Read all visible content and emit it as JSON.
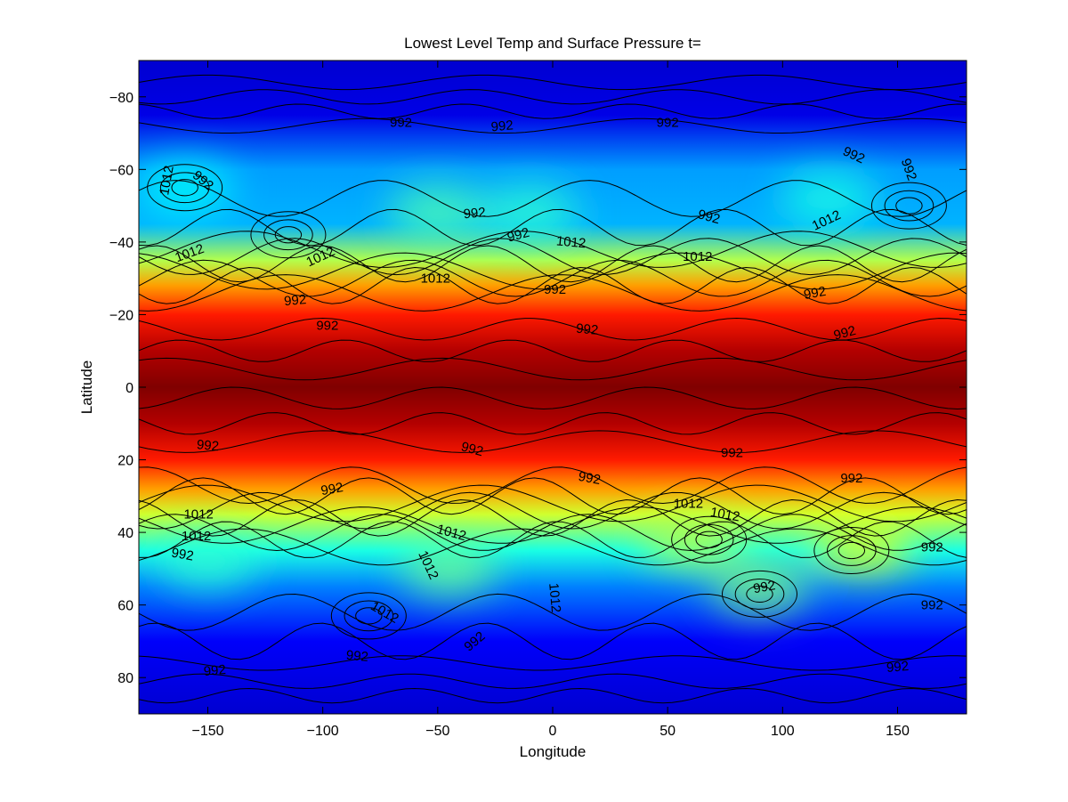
{
  "chart_data": {
    "type": "heatmap",
    "title": "Lowest Level Temp and Surface Pressure t=",
    "xlabel": "Longitude",
    "ylabel": "Latitude",
    "xlim": [
      -180,
      180
    ],
    "ylim": [
      -90,
      90
    ],
    "y_axis_reversed": true,
    "x_ticks": [
      -150,
      -100,
      -50,
      0,
      50,
      100,
      150
    ],
    "x_tick_labels": [
      "−150",
      "−100",
      "−50",
      "0",
      "50",
      "100",
      "150"
    ],
    "y_ticks": [
      -80,
      -60,
      -40,
      -20,
      0,
      20,
      40,
      60,
      80
    ],
    "y_tick_labels": [
      "−80",
      "−60",
      "−40",
      "−20",
      "0",
      "20",
      "40",
      "60",
      "80"
    ],
    "colormap": "jet",
    "colorbar": false,
    "grid": false,
    "temperature_profile": {
      "description_levels_by_latitude": [
        {
          "lat": -90,
          "level": 0.08
        },
        {
          "lat": -75,
          "level": 0.1
        },
        {
          "lat": -60,
          "level": 0.28
        },
        {
          "lat": -45,
          "level": 0.3
        },
        {
          "lat": -35,
          "level": 0.55
        },
        {
          "lat": -28,
          "level": 0.72
        },
        {
          "lat": -20,
          "level": 0.85
        },
        {
          "lat": -10,
          "level": 0.95
        },
        {
          "lat": 0,
          "level": 1.0
        },
        {
          "lat": 10,
          "level": 0.95
        },
        {
          "lat": 20,
          "level": 0.85
        },
        {
          "lat": 28,
          "level": 0.72
        },
        {
          "lat": 35,
          "level": 0.58
        },
        {
          "lat": 45,
          "level": 0.4
        },
        {
          "lat": 55,
          "level": 0.25
        },
        {
          "lat": 70,
          "level": 0.12
        },
        {
          "lat": 90,
          "level": 0.08
        }
      ]
    },
    "warm_blobs": [
      {
        "lon": -50,
        "lat": -48,
        "level": 0.45
      },
      {
        "lon": -10,
        "lat": -48,
        "level": 0.42
      },
      {
        "lon": 120,
        "lat": -52,
        "level": 0.4
      },
      {
        "lon": -160,
        "lat": -55,
        "level": 0.38
      },
      {
        "lon": 135,
        "lat": 44,
        "level": 0.6
      },
      {
        "lon": 60,
        "lat": 42,
        "level": 0.55
      },
      {
        "lon": -45,
        "lat": 50,
        "level": 0.48
      },
      {
        "lon": -150,
        "lat": 48,
        "level": 0.42
      },
      {
        "lon": 90,
        "lat": 55,
        "level": 0.5
      }
    ],
    "contour_labels": [
      {
        "text": "992",
        "lon": -66,
        "lat": -73,
        "angle": 0
      },
      {
        "text": "992",
        "lon": -22,
        "lat": -72,
        "angle": -5
      },
      {
        "text": "992",
        "lon": 50,
        "lat": -73,
        "angle": 0
      },
      {
        "text": "992",
        "lon": 131,
        "lat": -64,
        "angle": 25
      },
      {
        "text": "992",
        "lon": 155,
        "lat": -60,
        "angle": 70
      },
      {
        "text": "1012",
        "lon": -168,
        "lat": -57,
        "angle": -80
      },
      {
        "text": "992",
        "lon": -152,
        "lat": -57,
        "angle": 40
      },
      {
        "text": "992",
        "lon": -34,
        "lat": -48,
        "angle": -5
      },
      {
        "text": "992",
        "lon": 68,
        "lat": -47,
        "angle": 15
      },
      {
        "text": "1012",
        "lon": 119,
        "lat": -46,
        "angle": -25
      },
      {
        "text": "992",
        "lon": -15,
        "lat": -42,
        "angle": -15
      },
      {
        "text": "1012",
        "lon": 8,
        "lat": -40,
        "angle": 5
      },
      {
        "text": "1012",
        "lon": -158,
        "lat": -37,
        "angle": -20
      },
      {
        "text": "1012",
        "lon": -101,
        "lat": -36,
        "angle": -25
      },
      {
        "text": "1012",
        "lon": 63,
        "lat": -36,
        "angle": 0
      },
      {
        "text": "1012",
        "lon": -51,
        "lat": -30,
        "angle": 0
      },
      {
        "text": "992",
        "lon": 1,
        "lat": -27,
        "angle": 0
      },
      {
        "text": "992",
        "lon": 114,
        "lat": -26,
        "angle": -10
      },
      {
        "text": "992",
        "lon": -112,
        "lat": -24,
        "angle": -5
      },
      {
        "text": "992",
        "lon": -98,
        "lat": -17,
        "angle": 0
      },
      {
        "text": "992",
        "lon": 15,
        "lat": -16,
        "angle": 5
      },
      {
        "text": "992",
        "lon": 127,
        "lat": -15,
        "angle": -15
      },
      {
        "text": "992",
        "lon": -150,
        "lat": 16,
        "angle": 5
      },
      {
        "text": "992",
        "lon": -35,
        "lat": 17,
        "angle": 15
      },
      {
        "text": "992",
        "lon": 78,
        "lat": 18,
        "angle": 0
      },
      {
        "text": "992",
        "lon": -96,
        "lat": 28,
        "angle": -10
      },
      {
        "text": "992",
        "lon": 16,
        "lat": 25,
        "angle": 10
      },
      {
        "text": "992",
        "lon": 130,
        "lat": 25,
        "angle": 0
      },
      {
        "text": "1012",
        "lon": 59,
        "lat": 32,
        "angle": 0
      },
      {
        "text": "1012",
        "lon": -154,
        "lat": 35,
        "angle": 0
      },
      {
        "text": "1012",
        "lon": 75,
        "lat": 35,
        "angle": 10
      },
      {
        "text": "1012",
        "lon": -44,
        "lat": 40,
        "angle": 15
      },
      {
        "text": "1012",
        "lon": -155,
        "lat": 41,
        "angle": 0
      },
      {
        "text": "992",
        "lon": 165,
        "lat": 44,
        "angle": 0
      },
      {
        "text": "992",
        "lon": -161,
        "lat": 46,
        "angle": 10
      },
      {
        "text": "1012",
        "lon": -54,
        "lat": 49,
        "angle": 65
      },
      {
        "text": "992",
        "lon": 92,
        "lat": 55,
        "angle": -10
      },
      {
        "text": "1012",
        "lon": 1,
        "lat": 58,
        "angle": 85
      },
      {
        "text": "992",
        "lon": 165,
        "lat": 60,
        "angle": 0
      },
      {
        "text": "1012",
        "lon": -73,
        "lat": 62,
        "angle": 30
      },
      {
        "text": "992",
        "lon": -34,
        "lat": 70,
        "angle": -40
      },
      {
        "text": "992",
        "lon": -85,
        "lat": 74,
        "angle": 5
      },
      {
        "text": "992",
        "lon": 150,
        "lat": 77,
        "angle": -5
      },
      {
        "text": "992",
        "lon": -147,
        "lat": 78,
        "angle": -5
      }
    ],
    "contour_lines_lat": [
      -84,
      -80,
      -76,
      -72,
      -52,
      -44,
      -38,
      -36,
      -34,
      -32,
      -30,
      -28,
      -26,
      -16,
      -10,
      -5,
      3,
      10,
      15,
      27,
      30,
      32,
      34,
      36,
      38,
      40,
      42,
      44,
      62,
      70,
      76,
      81,
      85
    ]
  }
}
